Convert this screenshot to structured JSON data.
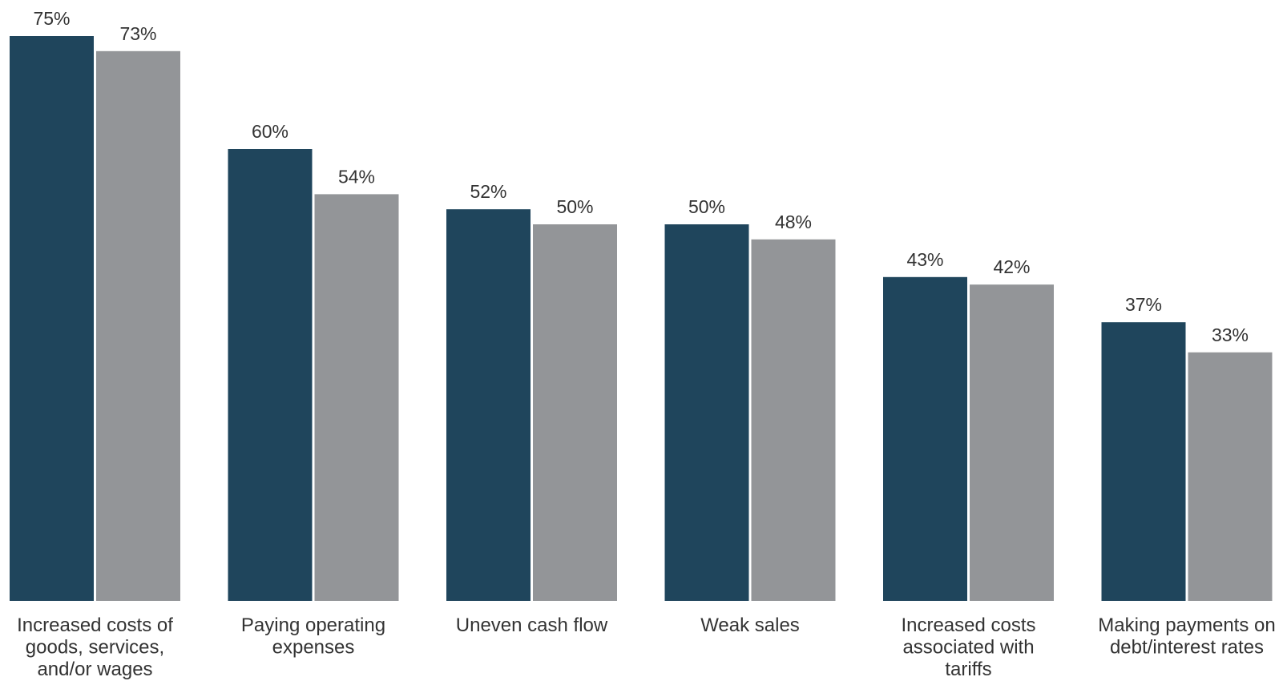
{
  "chart_data": {
    "type": "bar",
    "categories": [
      [
        "Increased costs of",
        "goods, services,",
        "and/or wages"
      ],
      [
        "Paying operating",
        "expenses"
      ],
      [
        "Uneven cash flow"
      ],
      [
        "Weak sales"
      ],
      [
        "Increased costs",
        "associated with",
        "tariffs"
      ],
      [
        "Making payments on",
        "debt/interest rates"
      ]
    ],
    "series": [
      {
        "values": [
          75,
          60,
          52,
          50,
          43,
          37
        ],
        "color": "#1f455c"
      },
      {
        "values": [
          73,
          54,
          50,
          48,
          42,
          33
        ],
        "color": "#939598"
      }
    ],
    "value_suffix": "%",
    "ylim": [
      0,
      75
    ],
    "grid": false,
    "legend": "none"
  }
}
